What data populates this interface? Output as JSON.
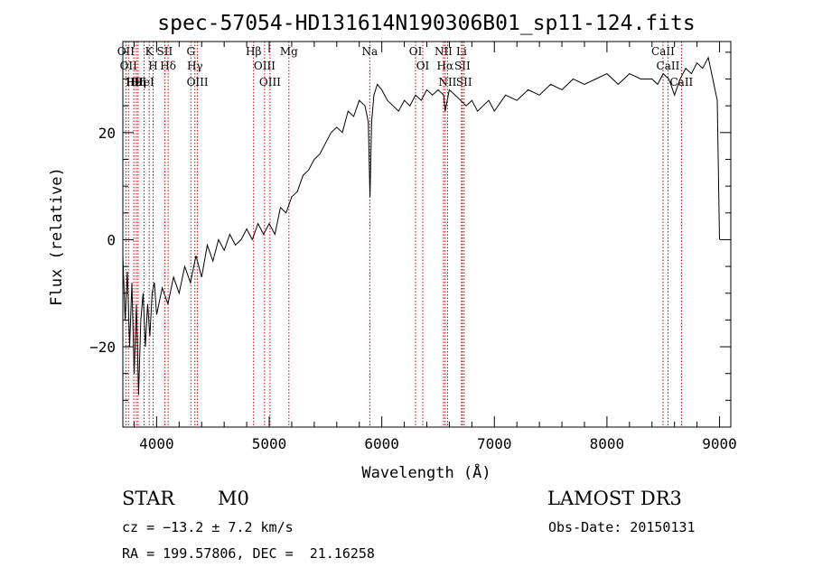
{
  "chart_data": {
    "type": "line",
    "title": "spec-57054-HD131614N190306B01_sp11-124.fits",
    "xlabel": "Wavelength (Å)",
    "ylabel": "Flux (relative)",
    "xlim": [
      3700,
      9100
    ],
    "ylim": [
      -35,
      37
    ],
    "x_ticks": [
      4000,
      5000,
      6000,
      7000,
      8000,
      9000
    ],
    "x_tick_labels": [
      "4000",
      "5000",
      "6000",
      "7000",
      "8000",
      "9000"
    ],
    "y_ticks": [
      -20,
      0,
      20
    ],
    "y_tick_labels": [
      "−20",
      "0",
      "20"
    ],
    "grid": false,
    "line_color": "#000000",
    "marker_color": "#c00000",
    "series": [
      {
        "x": [
          3700,
          3720,
          3740,
          3760,
          3780,
          3800,
          3820,
          3840,
          3860,
          3880,
          3900,
          3920,
          3940,
          3960,
          3980,
          4000,
          4050,
          4100,
          4150,
          4200,
          4250,
          4300,
          4350,
          4400,
          4450,
          4500,
          4550,
          4600,
          4650,
          4700,
          4750,
          4800,
          4850,
          4900,
          4950,
          5000,
          5050,
          5100,
          5150,
          5200,
          5250,
          5300,
          5350,
          5400,
          5450,
          5500,
          5550,
          5600,
          5650,
          5700,
          5750,
          5800,
          5850,
          5880,
          5895,
          5910,
          5930,
          5960,
          6000,
          6050,
          6100,
          6150,
          6200,
          6250,
          6300,
          6350,
          6400,
          6450,
          6500,
          6550,
          6563,
          6600,
          6650,
          6700,
          6750,
          6800,
          6850,
          6900,
          6950,
          7000,
          7100,
          7200,
          7300,
          7400,
          7500,
          7600,
          7700,
          7800,
          7900,
          8000,
          8100,
          8200,
          8300,
          8400,
          8450,
          8500,
          8550,
          8600,
          8650,
          8700,
          8750,
          8800,
          8850,
          8900,
          8950,
          8980,
          9000
        ],
        "y": [
          -3,
          -15,
          -6,
          -20,
          -8,
          -25,
          -12,
          -29,
          -15,
          -10,
          -20,
          -12,
          -18,
          -10,
          -8,
          -14,
          -9,
          -12,
          -7,
          -10,
          -5,
          -8,
          -3,
          -7,
          -1,
          -4,
          0,
          -2,
          1,
          -1,
          0,
          2,
          0,
          3,
          1,
          3,
          1,
          6,
          5,
          8,
          9,
          12,
          13,
          15,
          16,
          18,
          20,
          21,
          20,
          24,
          23,
          26,
          25,
          22,
          8,
          22,
          27,
          29,
          28,
          26,
          25,
          24,
          26,
          25,
          27,
          26,
          28,
          27,
          28,
          27,
          24,
          28,
          27,
          26,
          25,
          26,
          24,
          25,
          26,
          24,
          27,
          26,
          28,
          27,
          29,
          28,
          30,
          29,
          30,
          31,
          29,
          31,
          30,
          30,
          29,
          31,
          30,
          27,
          30,
          32,
          31,
          33,
          32,
          34,
          29,
          26,
          0
        ]
      }
    ],
    "line_markers": [
      {
        "wavelength": 3727,
        "label": "OII"
      },
      {
        "wavelength": 3750,
        "label": "OII"
      },
      {
        "wavelength": 3797,
        "label": "Hθ"
      },
      {
        "wavelength": 3820,
        "label": "HeI"
      },
      {
        "wavelength": 3835,
        "label": "Hη"
      },
      {
        "wavelength": 3889,
        "label": "HeI"
      },
      {
        "wavelength": 3934,
        "label": "K"
      },
      {
        "wavelength": 3969,
        "label": "H"
      },
      {
        "wavelength": 4072,
        "label": "SII"
      },
      {
        "wavelength": 4102,
        "label": "Hδ"
      },
      {
        "wavelength": 4304,
        "label": "G"
      },
      {
        "wavelength": 4340,
        "label": "Hγ"
      },
      {
        "wavelength": 4363,
        "label": "OIII"
      },
      {
        "wavelength": 4861,
        "label": "Hβ"
      },
      {
        "wavelength": 4959,
        "label": "OIII"
      },
      {
        "wavelength": 5007,
        "label": "OIII"
      },
      {
        "wavelength": 5175,
        "label": "Mg"
      },
      {
        "wavelength": 5893,
        "label": "Na"
      },
      {
        "wavelength": 6300,
        "label": "OI"
      },
      {
        "wavelength": 6364,
        "label": "OI"
      },
      {
        "wavelength": 6548,
        "label": "NII"
      },
      {
        "wavelength": 6563,
        "label": "Hα"
      },
      {
        "wavelength": 6584,
        "label": "NII"
      },
      {
        "wavelength": 6708,
        "label": "Li"
      },
      {
        "wavelength": 6716,
        "label": "SII"
      },
      {
        "wavelength": 6731,
        "label": "SII"
      },
      {
        "wavelength": 8498,
        "label": "CaII"
      },
      {
        "wavelength": 8542,
        "label": "CaII"
      },
      {
        "wavelength": 8662,
        "label": "CaII"
      }
    ]
  },
  "info": {
    "object_class": "STAR",
    "subclass": "M0",
    "survey": "LAMOST DR3",
    "redshift": "cz = −13.2 ± 7.2 km/s",
    "obs_date": "Obs-Date: 20150131",
    "coords": "RA = 199.57806, DEC =  21.16258"
  }
}
